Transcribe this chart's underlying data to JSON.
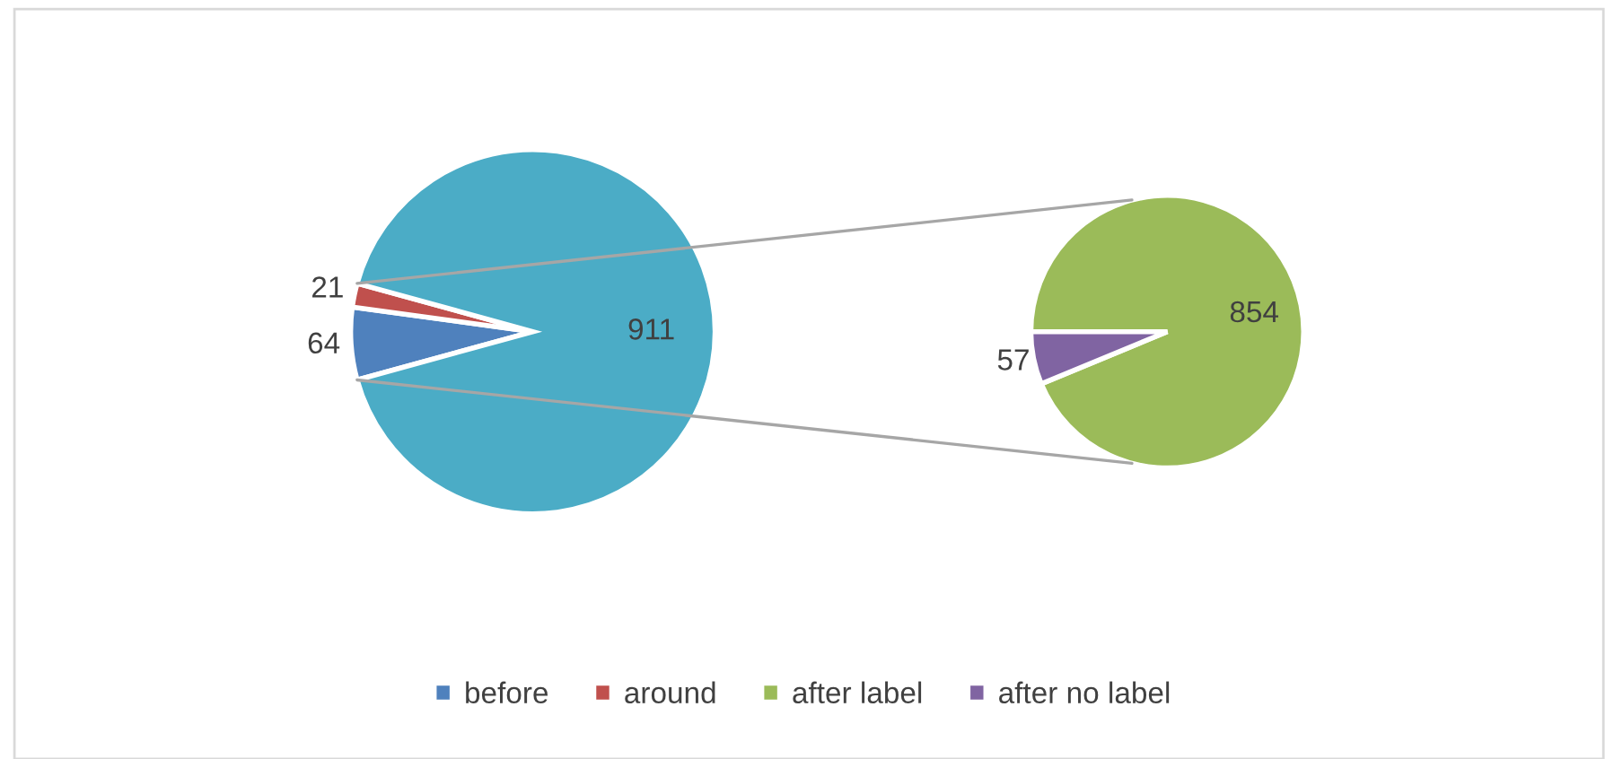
{
  "chart_data": [
    {
      "type": "pie",
      "categories": [
        "before",
        "around",
        null
      ],
      "values": [
        64,
        21,
        911
      ],
      "colors": [
        "#4f81bd",
        "#c0504d",
        "#4bacc6"
      ],
      "data_labels": true,
      "legend": "bottom"
    },
    {
      "type": "pie",
      "categories": [
        "after label",
        "after no label"
      ],
      "values": [
        854,
        57
      ],
      "colors": [
        "#9bbb59",
        "#8064a2"
      ],
      "data_labels": true,
      "legend": "bottom"
    }
  ]
}
